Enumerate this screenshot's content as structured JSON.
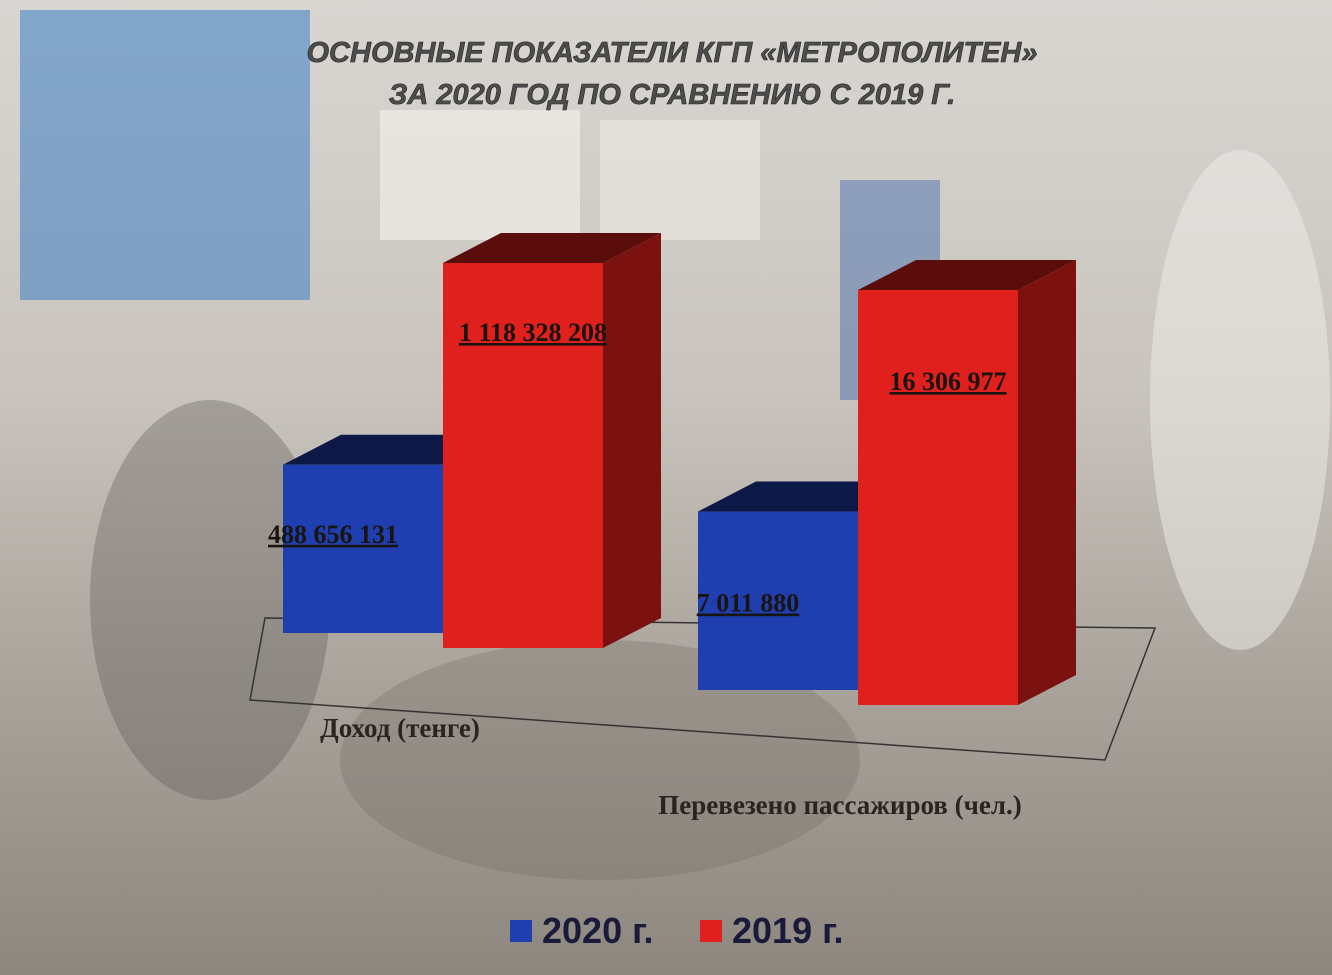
{
  "chart_data": {
    "type": "bar3d",
    "title": "ОСНОВНЫЕ ПОКАЗАТЕЛИ КГП «МЕТРОПОЛИТЕН»",
    "subtitle": "ЗА 2020 ГОД ПО СРАВНЕНИЮ С 2019 Г.",
    "categories": [
      "Доход (тенге)",
      "Перевезено пассажиров (чел.)"
    ],
    "series": [
      {
        "name": "2020 г.",
        "color": "#1f3fb0",
        "values": [
          488656131,
          7011880
        ],
        "value_labels": [
          "488 656 131",
          "7 011 880"
        ]
      },
      {
        "name": "2019 г.",
        "color": "#e0201c",
        "values": [
          1118328208,
          16306977
        ],
        "value_labels": [
          "1 118 328 208",
          "16 306 977"
        ]
      }
    ],
    "legend": "bottom"
  }
}
